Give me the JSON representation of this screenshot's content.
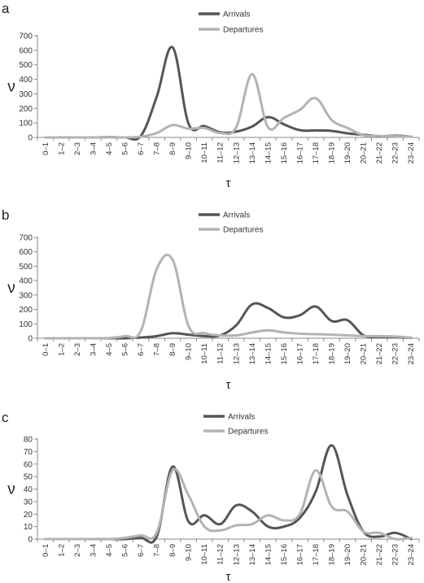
{
  "panels": [
    "a",
    "b",
    "c"
  ],
  "chart_data": [
    {
      "type": "line",
      "panel_label": "a",
      "xlabel": "τ",
      "ylabel": "ν",
      "ylim": [
        0,
        700
      ],
      "yticks": [
        0,
        100,
        200,
        300,
        400,
        500,
        600,
        700
      ],
      "grid": false,
      "legend_position": "top-center",
      "categories": [
        "0–1",
        "1–2",
        "2–3",
        "3–4",
        "4–5",
        "5–6",
        "6–7",
        "7–8",
        "8–9",
        "9–10",
        "10–11",
        "11–12",
        "12–13",
        "13–14",
        "14–15",
        "15–16",
        "16–17",
        "17–18",
        "18–19",
        "19–20",
        "20–21",
        "21–22",
        "22–23",
        "23–24"
      ],
      "series": [
        {
          "name": "Arrivals",
          "color": "#555555",
          "width": 3,
          "values": [
            0,
            0,
            0,
            0,
            2,
            0,
            10,
            280,
            620,
            95,
            78,
            35,
            40,
            75,
            140,
            90,
            50,
            48,
            45,
            28,
            18,
            8,
            12,
            5
          ]
        },
        {
          "name": "Departures",
          "color": "#b3b3b3",
          "width": 3,
          "values": [
            0,
            0,
            0,
            0,
            2,
            0,
            5,
            30,
            85,
            60,
            65,
            30,
            70,
            435,
            70,
            135,
            190,
            270,
            120,
            65,
            15,
            10,
            8,
            5
          ]
        }
      ]
    },
    {
      "type": "line",
      "panel_label": "b",
      "xlabel": "τ",
      "ylabel": "ν",
      "ylim": [
        0,
        700
      ],
      "yticks": [
        0,
        100,
        200,
        300,
        400,
        500,
        600,
        700
      ],
      "grid": false,
      "legend_position": "top-center",
      "categories": [
        "0–1",
        "1–2",
        "2–3",
        "3–4",
        "4–5",
        "5–6",
        "6–7",
        "7–8",
        "8–9",
        "9–10",
        "10–11",
        "11–12",
        "12–13",
        "13–14",
        "14–15",
        "15–16",
        "16–17",
        "17–18",
        "18–19",
        "19–20",
        "20–21",
        "21–22",
        "22–23",
        "23–24"
      ],
      "series": [
        {
          "name": "Arrivals",
          "color": "#555555",
          "width": 3,
          "values": [
            0,
            0,
            0,
            0,
            0,
            0,
            5,
            15,
            35,
            25,
            15,
            20,
            90,
            235,
            210,
            145,
            160,
            220,
            120,
            125,
            20,
            10,
            8,
            3
          ]
        },
        {
          "name": "Departures",
          "color": "#b3b3b3",
          "width": 3,
          "values": [
            0,
            0,
            0,
            0,
            2,
            15,
            50,
            480,
            545,
            85,
            35,
            20,
            20,
            40,
            55,
            40,
            32,
            28,
            25,
            20,
            15,
            15,
            12,
            5
          ]
        }
      ]
    },
    {
      "type": "line",
      "panel_label": "c",
      "xlabel": "τ",
      "ylabel": "ν",
      "ylim": [
        0,
        80
      ],
      "yticks": [
        0,
        10,
        20,
        30,
        40,
        50,
        60,
        70,
        80
      ],
      "grid": false,
      "legend_position": "top-center",
      "categories": [
        "0–1",
        "1–2",
        "2–3",
        "3–4",
        "4–5",
        "5–6",
        "6–7",
        "7–8",
        "8–9",
        "9–10",
        "10–11",
        "11–12",
        "12–13",
        "13–14",
        "14–15",
        "15–16",
        "16–17",
        "17–18",
        "18–19",
        "19–20",
        "20–21",
        "21–22",
        "22–23",
        "23–24"
      ],
      "series": [
        {
          "name": "Arrivals",
          "color": "#555555",
          "width": 3,
          "values": [
            0,
            0,
            0,
            0,
            0,
            0,
            1,
            2,
            58,
            14,
            19,
            12,
            27,
            22,
            10,
            10,
            17,
            38,
            75,
            35,
            6,
            2,
            5,
            0
          ]
        },
        {
          "name": "Departures",
          "color": "#b3b3b3",
          "width": 3,
          "values": [
            0,
            0,
            0,
            0,
            0,
            1,
            3,
            5,
            55,
            35,
            10,
            7,
            11,
            12,
            19,
            15,
            20,
            55,
            26,
            22,
            6,
            5,
            0,
            1
          ]
        }
      ]
    }
  ]
}
